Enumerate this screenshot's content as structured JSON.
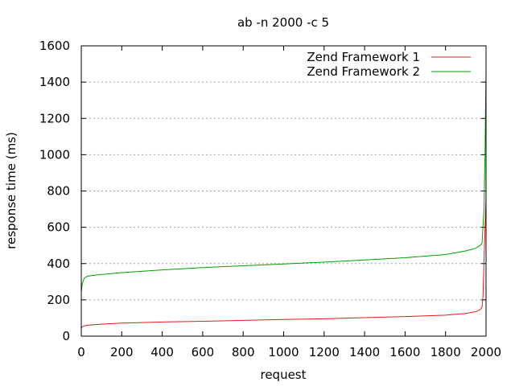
{
  "chart_data": {
    "type": "line",
    "title": "ab -n 2000 -c 5",
    "xlabel": "request",
    "ylabel": "response time (ms)",
    "xlim": [
      0,
      2000
    ],
    "ylim": [
      0,
      1600
    ],
    "x_ticks": [
      0,
      200,
      400,
      600,
      800,
      1000,
      1200,
      1400,
      1600,
      1800,
      2000
    ],
    "y_ticks": [
      0,
      200,
      400,
      600,
      800,
      1000,
      1200,
      1400,
      1600
    ],
    "grid": "horizontal dotted",
    "legend_position": "top-right",
    "series": [
      {
        "name": "Zend Framework 1",
        "color": "#e41a1c",
        "x": [
          0,
          5,
          20,
          50,
          100,
          200,
          300,
          400,
          600,
          800,
          1000,
          1200,
          1400,
          1600,
          1800,
          1900,
          1950,
          1970,
          1980,
          1985,
          1990,
          1995,
          2000
        ],
        "y": [
          45,
          52,
          58,
          62,
          66,
          72,
          75,
          78,
          82,
          87,
          92,
          96,
          102,
          108,
          116,
          125,
          135,
          145,
          160,
          220,
          420,
          600,
          760
        ]
      },
      {
        "name": "Zend Framework 2",
        "color": "#00a000",
        "x": [
          0,
          5,
          15,
          30,
          60,
          100,
          200,
          400,
          600,
          800,
          1000,
          1200,
          1400,
          1600,
          1800,
          1900,
          1950,
          1970,
          1980,
          1990,
          1995,
          1998,
          2000
        ],
        "y": [
          240,
          290,
          320,
          330,
          335,
          340,
          350,
          365,
          378,
          388,
          398,
          408,
          420,
          432,
          450,
          470,
          485,
          500,
          510,
          700,
          1000,
          1300,
          1450
        ]
      }
    ]
  }
}
